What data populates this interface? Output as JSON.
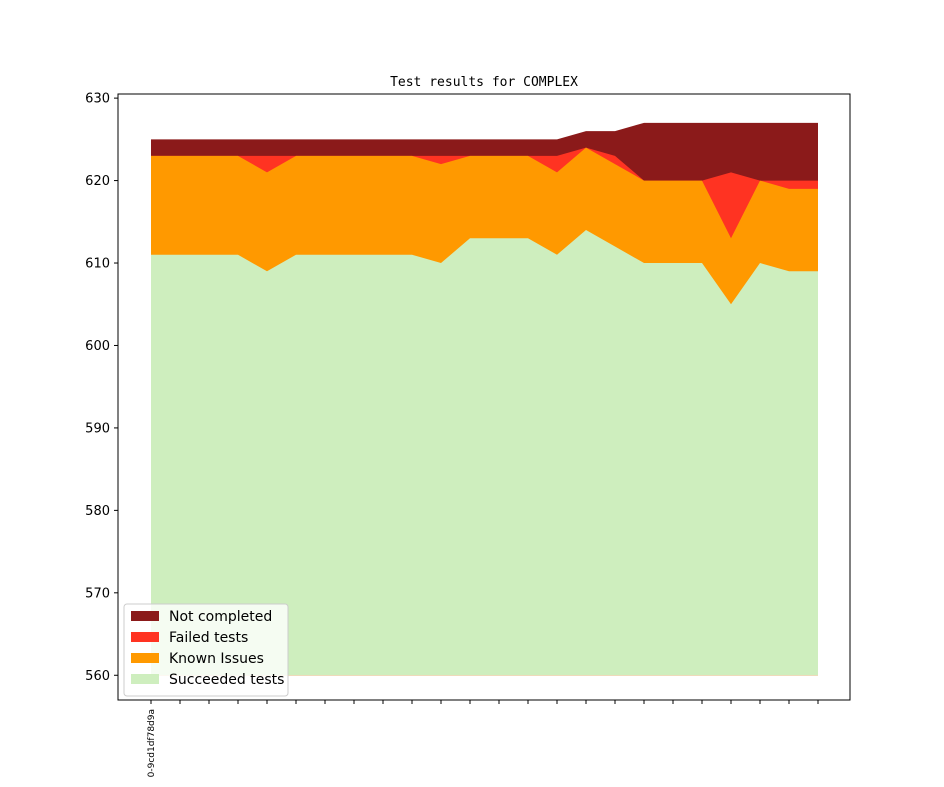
{
  "chart_data": {
    "type": "area",
    "stacked": true,
    "title": "Test results for COMPLEX",
    "xlabel": "",
    "ylabel": "",
    "ylim": [
      557,
      630.5
    ],
    "yticks": [
      560,
      570,
      580,
      590,
      600,
      610,
      620,
      630
    ],
    "x_count": 24,
    "x_tick_labels": [
      {
        "index": 0,
        "label": "0-9cd1df78d9a"
      }
    ],
    "legend_position": "lower-left",
    "grid": false,
    "series": [
      {
        "name": "Not completed",
        "color": "#8b1a1a",
        "top": [
          625,
          625,
          625,
          625,
          625,
          625,
          625,
          625,
          625,
          625,
          625,
          625,
          625,
          625,
          625,
          626,
          626,
          627,
          627,
          627,
          627,
          627,
          627,
          627
        ]
      },
      {
        "name": "Failed tests",
        "color": "#ff3322",
        "top": [
          623,
          623,
          623,
          623,
          623,
          623,
          623,
          623,
          623,
          623,
          623,
          623,
          623,
          623,
          623,
          624,
          623,
          620,
          620,
          620,
          621,
          620,
          620,
          620
        ]
      },
      {
        "name": "Known Issues",
        "color": "#ff9900",
        "top": [
          623,
          623,
          623,
          623,
          621,
          623,
          623,
          623,
          623,
          623,
          622,
          623,
          623,
          623,
          621,
          624,
          622,
          620,
          620,
          620,
          613,
          620,
          619,
          619
        ]
      },
      {
        "name": "Succeeded tests",
        "color": "#ceeebe",
        "top": [
          611,
          611,
          611,
          611,
          609,
          611,
          611,
          611,
          611,
          611,
          610,
          613,
          613,
          613,
          611,
          614,
          612,
          610,
          610,
          610,
          605,
          610,
          609,
          609
        ]
      }
    ],
    "baseline": 560
  }
}
